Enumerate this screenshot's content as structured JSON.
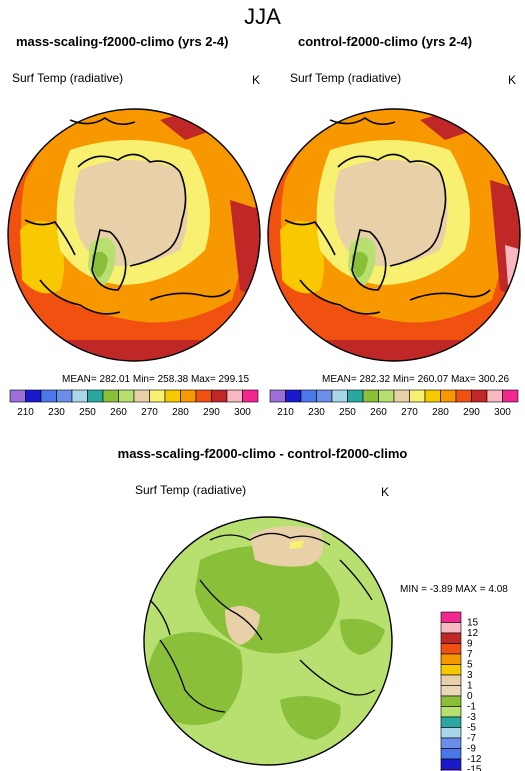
{
  "page": {
    "season": "JJA"
  },
  "colors": {
    "continent": "#000000",
    "background": "#ffffff"
  },
  "panels": [
    {
      "title": "mass-scaling-f2000-climo (yrs 2-4)",
      "variable": "Surf Temp (radiative)",
      "units": "K",
      "stats": "MEAN= 282.01  Min= 258.38  Max= 299.15"
    },
    {
      "title": "control-f2000-climo (yrs 2-4)",
      "variable": "Surf Temp (radiative)",
      "units": "K",
      "stats": "MEAN= 282.32  Min= 260.07  Max= 300.26"
    }
  ],
  "abs_colorbar": {
    "ticks": [
      "210",
      "230",
      "250",
      "260",
      "270",
      "280",
      "290",
      "300"
    ],
    "levels": [
      210,
      220,
      230,
      240,
      250,
      255,
      260,
      265,
      270,
      275,
      280,
      285,
      290,
      295,
      300
    ],
    "colors": [
      "#9b6fd6",
      "#1a1acc",
      "#4a78e8",
      "#6b8fe8",
      "#a8d8e8",
      "#2aa8a0",
      "#8abf3a",
      "#b8e070",
      "#e8d0a8",
      "#f8f070",
      "#f8c800",
      "#f89800",
      "#f05010",
      "#c02828",
      "#f8b8c0",
      "#f02890"
    ]
  },
  "diff_panel": {
    "title": "mass-scaling-f2000-climo - control-f2000-climo",
    "variable": "Surf Temp (radiative)",
    "units": "K",
    "stats": "MIN =  -3.89 MAX =  4.08"
  },
  "diff_colorbar": {
    "ticks": [
      "15",
      "12",
      "9",
      "7",
      "5",
      "3",
      "1",
      "0",
      "-1",
      "-3",
      "-5",
      "-7",
      "-9",
      "-12",
      "-15"
    ],
    "colors": [
      "#f02890",
      "#f8b8c0",
      "#c02828",
      "#f05010",
      "#f89800",
      "#f8c800",
      "#e8d0a8",
      "#e8d8b8",
      "#8abf3a",
      "#b8e070",
      "#2aa8a0",
      "#a8d8e8",
      "#6b8fe8",
      "#4a78e8",
      "#1a1acc",
      "#9b6fd6"
    ]
  }
}
